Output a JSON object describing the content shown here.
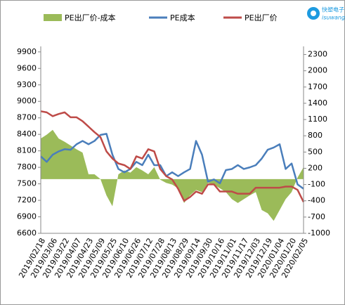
{
  "chart_data": {
    "type": "line",
    "categories": [
      "2019/02/18",
      null,
      "2019/03/06",
      null,
      "2019/03/22",
      null,
      "2019/04/07",
      null,
      "2019/04/23",
      null,
      "2019/05/09",
      null,
      "2019/05/25",
      null,
      "2019/06/10",
      null,
      "2019/06/26",
      null,
      "2019/07/12",
      null,
      "2019/07/28",
      null,
      "2019/08/13",
      null,
      "2019/08/29",
      null,
      "2019/09/14",
      null,
      "2019/09/30",
      null,
      "2019/10/16",
      null,
      "2019/11/01",
      null,
      "2019/11/17",
      null,
      "2019/12/03",
      null,
      "2019/12/19",
      null,
      "2020/01/04",
      null,
      "2020/01/20",
      null,
      "2020/02/05"
    ],
    "series": [
      {
        "name": "PE出厂价-成本",
        "type": "area",
        "axis": "y2",
        "color": "#9bbb59",
        "values": [
          750,
          820,
          910,
          750,
          690,
          620,
          550,
          490,
          90,
          90,
          0,
          -300,
          -500,
          90,
          160,
          120,
          220,
          160,
          90,
          220,
          -10,
          -70,
          -100,
          -170,
          -440,
          -300,
          -200,
          -240,
          -70,
          -100,
          -170,
          -240,
          -370,
          -440,
          -370,
          -300,
          -240,
          -570,
          -630,
          -770,
          -570,
          -370,
          -240,
          30,
          220
        ]
      },
      {
        "name": "PE成本",
        "color": "#4a7ebb",
        "values": [
          8000,
          7900,
          8030,
          8090,
          8130,
          8120,
          8220,
          8280,
          8220,
          8280,
          8390,
          8410,
          8030,
          7770,
          7710,
          7770,
          7900,
          7840,
          8030,
          7840,
          7840,
          7640,
          7710,
          7640,
          7710,
          7770,
          8280,
          8030,
          7540,
          7580,
          7510,
          7750,
          7770,
          7840,
          7770,
          7800,
          7840,
          7960,
          8120,
          8160,
          8220,
          7770,
          7870,
          7490,
          7410
        ]
      },
      {
        "name": "PE出厂价",
        "color": "#be4b48",
        "values": [
          8820,
          8800,
          8730,
          8770,
          8800,
          8710,
          8710,
          8640,
          8540,
          8440,
          8350,
          8090,
          7960,
          7870,
          7840,
          7770,
          8000,
          7960,
          8130,
          8090,
          7770,
          7640,
          7580,
          7410,
          7190,
          7260,
          7360,
          7320,
          7490,
          7490,
          7360,
          7360,
          7360,
          7320,
          7320,
          7320,
          7430,
          7430,
          7430,
          7430,
          7430,
          7450,
          7450,
          7390,
          7170
        ]
      }
    ],
    "ylim": [
      6600,
      10000
    ],
    "yticks": [
      6600,
      6900,
      7200,
      7500,
      7800,
      8100,
      8400,
      8700,
      9000,
      9300,
      9600,
      9900
    ],
    "y2lim": [
      -1000,
      2450
    ],
    "y2ticks": [
      -1000,
      -700,
      -400,
      -100,
      200,
      500,
      800,
      1100,
      1400,
      1700,
      2000,
      2300
    ]
  },
  "logo": {
    "text": "快塑电子",
    "subtext": "isuwang"
  }
}
